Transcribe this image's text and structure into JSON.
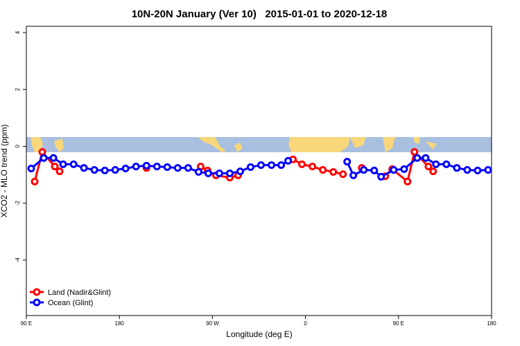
{
  "chart_data": {
    "type": "line",
    "title": "10N-20N January (Ver 10)   2015-01-01 to 2020-12-18",
    "x_label": "Longitude (deg E)",
    "y_label": "XCO2 - MLO trend (ppm)",
    "xlim": [
      90,
      540
    ],
    "ylim": [
      -5.95,
      4.22
    ],
    "xticks": [
      {
        "value": 90,
        "label": "90 E"
      },
      180,
      {
        "value": 270,
        "label": "90 W"
      },
      {
        "value": 360,
        "label": "0"
      },
      {
        "value": 450,
        "label": "90 E"
      },
      {
        "value": 540,
        "label": "180"
      }
    ],
    "yticks": [
      -4,
      -2,
      0,
      2,
      4
    ],
    "legend": "bottom-left",
    "series": [
      {
        "name": "Land (Nadir&Glint)",
        "color": "#ff0000",
        "x": [
          98.1,
          105.4,
          117.5,
          122.2,
          null,
          206.2,
          null,
          258.6,
          265.3,
          273.4,
          286.8,
          294.8,
          null,
          347.9,
          356.6,
          366.7,
          376.8,
          386.9,
          396.3,
          null,
          414.4,
          null,
          437.2,
          443.9,
          458.7,
          465.4,
          478.9,
          483.5
        ],
        "values": [
          -1.24,
          -0.2,
          -0.71,
          -0.88,
          null,
          -0.76,
          null,
          -0.71,
          -0.85,
          -1.02,
          -1.1,
          -1.02,
          null,
          -0.46,
          -0.63,
          -0.71,
          -0.83,
          -0.9,
          -0.98,
          null,
          -0.76,
          null,
          -1.05,
          -0.8,
          -1.24,
          -0.2,
          -0.71,
          -0.88
        ]
      },
      {
        "name": "Ocean (Glint)",
        "color": "#0000ff",
        "x": [
          94.7,
          106.8,
          116.2,
          125.6,
          135.7,
          145.7,
          155.8,
          165.9,
          176,
          186,
          196.1,
          206.2,
          216.3,
          226.3,
          236.4,
          246.5,
          256.6,
          266,
          276.7,
          286.8,
          296.9,
          306.9,
          317,
          327.1,
          336.5,
          343.2,
          null,
          400.3,
          406.3,
          416.4,
          426.5,
          433.2,
          445.3,
          455.4,
          468.1,
          476.2,
          486.2,
          496.3,
          506.4,
          516.5,
          526.5,
          536.6
        ],
        "values": [
          -0.78,
          -0.41,
          -0.41,
          -0.63,
          -0.63,
          -0.76,
          -0.83,
          -0.85,
          -0.83,
          -0.78,
          -0.71,
          -0.68,
          -0.71,
          -0.73,
          -0.76,
          -0.76,
          -0.9,
          -0.95,
          -0.95,
          -0.95,
          -0.88,
          -0.73,
          -0.66,
          -0.66,
          -0.66,
          -0.51,
          null,
          -0.54,
          -1.02,
          -0.83,
          -0.85,
          -1.07,
          -0.83,
          -0.8,
          -0.41,
          -0.41,
          -0.63,
          -0.63,
          -0.76,
          -0.83,
          -0.85,
          -0.83
        ]
      }
    ]
  }
}
